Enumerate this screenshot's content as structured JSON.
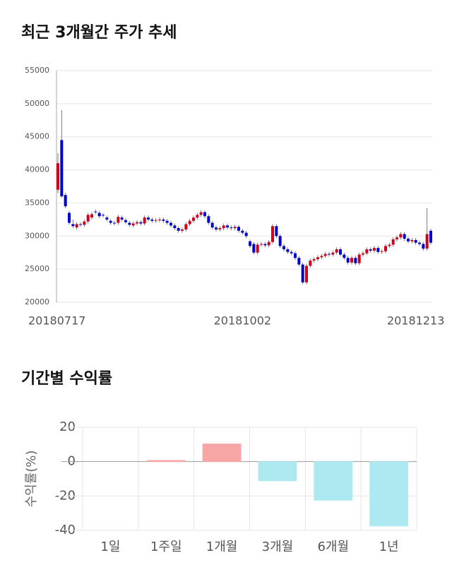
{
  "chart_data": [
    {
      "type": "candlestick",
      "title": "최근 3개월간 주가 추세",
      "categories": [
        "20180717",
        null,
        null,
        null,
        null,
        null,
        null,
        null,
        null,
        null,
        null,
        null,
        null,
        null,
        null,
        null,
        null,
        null,
        null,
        null,
        null,
        null,
        null,
        null,
        null,
        null,
        null,
        null,
        null,
        null,
        null,
        null,
        null,
        null,
        null,
        null,
        null,
        null,
        null,
        null,
        null,
        null,
        null,
        null,
        null,
        null,
        null,
        null,
        null,
        "20181002",
        null,
        null,
        null,
        null,
        null,
        null,
        null,
        null,
        null,
        null,
        null,
        null,
        null,
        null,
        null,
        null,
        null,
        null,
        null,
        null,
        null,
        null,
        null,
        null,
        null,
        null,
        null,
        null,
        null,
        null,
        null,
        null,
        null,
        null,
        null,
        null,
        null,
        null,
        null,
        null,
        null,
        null,
        null,
        null,
        null,
        "20181213",
        null,
        null,
        null,
        null
      ],
      "open": [
        37000,
        44500,
        36200,
        33500,
        31800,
        31300,
        31800,
        31700,
        32200,
        32800,
        33700,
        33500,
        33200,
        32800,
        32300,
        32000,
        32000,
        32800,
        32400,
        32000,
        31600,
        31900,
        32100,
        31900,
        32800,
        32500,
        32300,
        32400,
        32500,
        32300,
        32000,
        31600,
        31200,
        30800,
        31000,
        31800,
        32300,
        32800,
        33200,
        33600,
        33000,
        32000,
        31300,
        31000,
        31200,
        31600,
        31300,
        31200,
        31400,
        30800,
        30500,
        29200,
        28800,
        27500,
        28700,
        28800,
        28600,
        29100,
        31500,
        30000,
        28500,
        28000,
        27600,
        27400,
        26700,
        25700,
        23000,
        25500,
        26300,
        26500,
        26800,
        27000,
        27300,
        27200,
        27500,
        28000,
        27200,
        26700,
        26000,
        26700,
        25900,
        27200,
        27400,
        28000,
        27800,
        28200,
        27600,
        27700,
        28500,
        28700,
        29500,
        29800,
        30300,
        29600,
        29200,
        29400,
        29000,
        28800,
        28100,
        30800
      ],
      "high": [
        42500,
        49000,
        36500,
        33800,
        32500,
        32100,
        32100,
        32500,
        33500,
        33600,
        34000,
        33800,
        33500,
        33100,
        32600,
        32300,
        33200,
        33100,
        32700,
        32300,
        32200,
        32400,
        32400,
        33100,
        33100,
        32800,
        32700,
        32800,
        32800,
        32600,
        32300,
        31900,
        31500,
        31300,
        32100,
        32600,
        33100,
        33500,
        33900,
        33900,
        33300,
        32300,
        31600,
        31500,
        31900,
        31900,
        31600,
        31700,
        31700,
        31100,
        30800,
        29500,
        29100,
        29000,
        29100,
        29100,
        29400,
        31800,
        31800,
        30300,
        28800,
        28300,
        27900,
        27700,
        27000,
        26000,
        25800,
        26600,
        26800,
        27100,
        27300,
        27600,
        27600,
        27800,
        28300,
        28300,
        27500,
        27000,
        27000,
        27000,
        27500,
        27700,
        28300,
        28300,
        28500,
        28500,
        28000,
        28800,
        29000,
        29800,
        30100,
        30600,
        30600,
        29900,
        29700,
        29700,
        29300,
        29100,
        34200,
        31100
      ],
      "low": [
        36500,
        35800,
        34200,
        31700,
        31200,
        31000,
        31400,
        31400,
        31900,
        32500,
        33300,
        32700,
        32800,
        32200,
        31700,
        31600,
        31700,
        32200,
        31800,
        31400,
        31300,
        31600,
        31600,
        31600,
        32200,
        32000,
        32000,
        32100,
        32000,
        31700,
        31300,
        30900,
        30500,
        30500,
        30700,
        31500,
        32000,
        32500,
        32900,
        32700,
        31700,
        31000,
        30700,
        30700,
        30900,
        31000,
        30900,
        30900,
        30500,
        30200,
        29700,
        28200,
        27200,
        27200,
        28400,
        28300,
        28300,
        28800,
        29700,
        28200,
        27700,
        27300,
        27100,
        26400,
        25400,
        22700,
        22700,
        25200,
        26000,
        26200,
        26500,
        26700,
        26900,
        26900,
        27200,
        26900,
        26400,
        25700,
        25700,
        25600,
        25600,
        26900,
        27100,
        27500,
        27500,
        27300,
        27300,
        27400,
        28200,
        28400,
        29200,
        29500,
        29300,
        28900,
        28900,
        28700,
        28500,
        27800,
        27800,
        28700
      ],
      "close": [
        41000,
        36000,
        34500,
        32000,
        31500,
        31800,
        31700,
        32200,
        33200,
        33300,
        33600,
        33000,
        33100,
        32500,
        32000,
        31900,
        32900,
        32500,
        32100,
        31700,
        31900,
        32100,
        31900,
        32800,
        32500,
        32300,
        32400,
        32500,
        32300,
        32000,
        31600,
        31200,
        30800,
        31000,
        31800,
        32300,
        32800,
        33200,
        33600,
        33000,
        32000,
        31300,
        31000,
        31200,
        31600,
        31300,
        31200,
        31400,
        30800,
        30500,
        30000,
        28500,
        27500,
        28700,
        28800,
        28600,
        29100,
        31500,
        30000,
        28500,
        28000,
        27600,
        27400,
        26700,
        25700,
        23000,
        25500,
        26300,
        26500,
        26800,
        27000,
        27300,
        27200,
        27500,
        28000,
        27200,
        26700,
        26000,
        26700,
        25900,
        27200,
        27400,
        28000,
        27800,
        28200,
        27600,
        27700,
        28500,
        28700,
        29500,
        29800,
        30300,
        29600,
        29200,
        29400,
        29000,
        28800,
        28100,
        30300,
        29000
      ],
      "up_color": "#d0021b",
      "down_color": "#0000cc",
      "ylim": [
        20000,
        55000
      ],
      "yticks": [
        20000,
        25000,
        30000,
        35000,
        40000,
        45000,
        50000,
        55000
      ],
      "grid": true
    },
    {
      "type": "bar",
      "title": "기간별 수익률",
      "y_label": "수익률(%)",
      "categories": [
        "1일",
        "1주일",
        "1개월",
        "3개월",
        "6개월",
        "1년"
      ],
      "values": [
        0,
        0.7,
        10.3,
        -11.2,
        -22.5,
        -37.5
      ],
      "colors": [
        "#f7a6a6",
        "#f7a6a6",
        "#f7a6a6",
        "#aee9f1",
        "#aee9f1",
        "#aee9f1"
      ],
      "ylim": [
        -40,
        20
      ],
      "yticks": [
        20,
        0,
        -20,
        -40
      ],
      "grid": true
    }
  ]
}
